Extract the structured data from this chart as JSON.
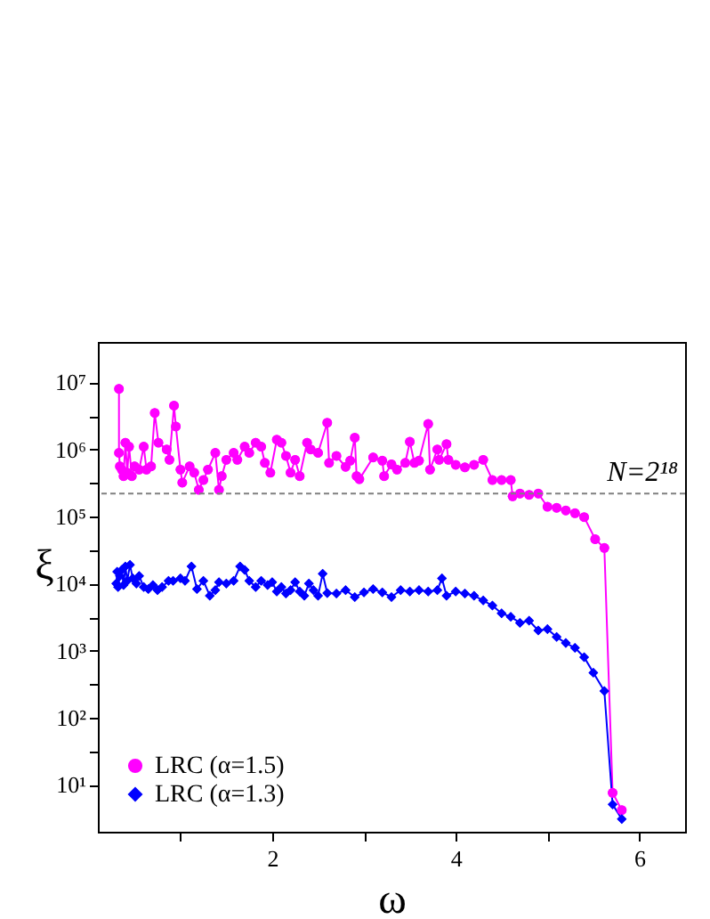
{
  "chart_data": {
    "type": "line",
    "xlabel": "ω",
    "ylabel": "ξ",
    "log": "y",
    "xlim": [
      0.1,
      6.5
    ],
    "ylim": [
      2,
      40000000
    ],
    "xticks": [
      {
        "value": 1,
        "label": null
      },
      2,
      {
        "value": 3,
        "label": null
      },
      4,
      {
        "value": 5,
        "label": null
      },
      6
    ],
    "yticks": [
      {
        "value": 10,
        "label": "10¹"
      },
      {
        "value": 31.6,
        "label": null
      },
      {
        "value": 100,
        "label": "10²"
      },
      {
        "value": 316,
        "label": null
      },
      {
        "value": 1000,
        "label": "10³"
      },
      {
        "value": 3160,
        "label": null
      },
      {
        "value": 10000,
        "label": "10⁴"
      },
      {
        "value": 31600,
        "label": null
      },
      {
        "value": 100000,
        "label": "10⁵"
      },
      {
        "value": 316000,
        "label": null
      },
      {
        "value": 1000000,
        "label": "10⁶"
      },
      {
        "value": 3160000,
        "label": null
      },
      {
        "value": 10000000,
        "label": "10⁷"
      }
    ],
    "grid": false,
    "legend": "bottom left",
    "ref_lines": [
      {
        "axis": "y",
        "value": 220000,
        "color": "#808080",
        "line_style": "dashed"
      }
    ],
    "annotations": [
      "N=2¹⁸"
    ],
    "series": [
      {
        "name": "LRC (α=1.5)",
        "color": "#ff00ff",
        "marker": "circle",
        "x": [
          0.33,
          0.33,
          0.34,
          0.36,
          0.38,
          0.4,
          0.42,
          0.44,
          0.47,
          0.5,
          0.55,
          0.6,
          0.63,
          0.68,
          0.72,
          0.76,
          0.85,
          0.88,
          0.93,
          0.95,
          1.0,
          1.02,
          1.1,
          1.15,
          1.2,
          1.25,
          1.3,
          1.38,
          1.42,
          1.45,
          1.5,
          1.58,
          1.62,
          1.7,
          1.75,
          1.82,
          1.88,
          1.92,
          1.98,
          2.05,
          2.1,
          2.15,
          2.2,
          2.25,
          2.3,
          2.38,
          2.42,
          2.5,
          2.6,
          2.62,
          2.7,
          2.8,
          2.85,
          2.9,
          2.92,
          2.95,
          3.1,
          3.2,
          3.22,
          3.3,
          3.36,
          3.45,
          3.5,
          3.55,
          3.6,
          3.7,
          3.72,
          3.8,
          3.82,
          3.9,
          3.92,
          4.0,
          4.1,
          4.2,
          4.3,
          4.4,
          4.5,
          4.6,
          4.62,
          4.7,
          4.8,
          4.9,
          5.0,
          5.1,
          5.2,
          5.3,
          5.4,
          5.52,
          5.62,
          5.71,
          5.81
        ],
        "values": [
          8000000,
          890000,
          560000,
          500000,
          400000,
          1260000,
          450000,
          1100000,
          400000,
          560000,
          500000,
          1100000,
          500000,
          560000,
          3500000,
          1260000,
          1000000,
          700000,
          4500000,
          2200000,
          500000,
          320000,
          560000,
          450000,
          250000,
          350000,
          500000,
          890000,
          250000,
          400000,
          700000,
          890000,
          700000,
          1100000,
          890000,
          1260000,
          1100000,
          630000,
          450000,
          1400000,
          1260000,
          800000,
          450000,
          700000,
          400000,
          1260000,
          1000000,
          890000,
          2500000,
          630000,
          800000,
          550000,
          680000,
          1500000,
          400000,
          360000,
          760000,
          680000,
          400000,
          600000,
          500000,
          630000,
          1300000,
          630000,
          680000,
          2400000,
          500000,
          1000000,
          700000,
          1200000,
          700000,
          590000,
          540000,
          590000,
          700000,
          350000,
          350000,
          350000,
          200000,
          220000,
          210000,
          220000,
          140000,
          135000,
          123000,
          112000,
          98000,
          46000,
          34000,
          7.6,
          4.2
        ]
      },
      {
        "name": "LRC (α=1.3)",
        "color": "#0000ff",
        "marker": "diamond",
        "x": [
          0.3,
          0.31,
          0.32,
          0.34,
          0.36,
          0.38,
          0.4,
          0.42,
          0.45,
          0.48,
          0.52,
          0.55,
          0.6,
          0.65,
          0.7,
          0.75,
          0.8,
          0.87,
          0.92,
          1.0,
          1.05,
          1.12,
          1.18,
          1.25,
          1.32,
          1.38,
          1.42,
          1.5,
          1.58,
          1.65,
          1.7,
          1.75,
          1.82,
          1.88,
          1.95,
          2.0,
          2.05,
          2.1,
          2.15,
          2.2,
          2.25,
          2.3,
          2.35,
          2.4,
          2.45,
          2.5,
          2.55,
          2.6,
          2.7,
          2.8,
          2.9,
          3.0,
          3.1,
          3.2,
          3.3,
          3.4,
          3.5,
          3.6,
          3.7,
          3.8,
          3.85,
          3.9,
          4.0,
          4.1,
          4.2,
          4.3,
          4.4,
          4.5,
          4.6,
          4.7,
          4.8,
          4.9,
          5.0,
          5.1,
          5.2,
          5.3,
          5.4,
          5.5,
          5.62,
          5.71,
          5.81
        ],
        "values": [
          10000,
          15000,
          8900,
          13000,
          16000,
          9500,
          18000,
          11000,
          19000,
          12000,
          10000,
          13000,
          8900,
          8300,
          9500,
          8000,
          8900,
          11000,
          11000,
          12000,
          11000,
          18000,
          8300,
          11000,
          6600,
          8000,
          10500,
          10000,
          11000,
          18000,
          16000,
          11000,
          8900,
          11000,
          9500,
          10500,
          7600,
          8900,
          7100,
          8000,
          10500,
          7600,
          6600,
          10000,
          8000,
          6600,
          14000,
          7200,
          7100,
          8000,
          6300,
          7400,
          8300,
          7400,
          6300,
          8000,
          7600,
          8000,
          7600,
          8000,
          12000,
          6600,
          7600,
          7100,
          6600,
          5600,
          4700,
          3600,
          3200,
          2600,
          2800,
          2000,
          2100,
          1600,
          1300,
          1100,
          800,
          470,
          250,
          5.1,
          3.1
        ]
      }
    ]
  }
}
